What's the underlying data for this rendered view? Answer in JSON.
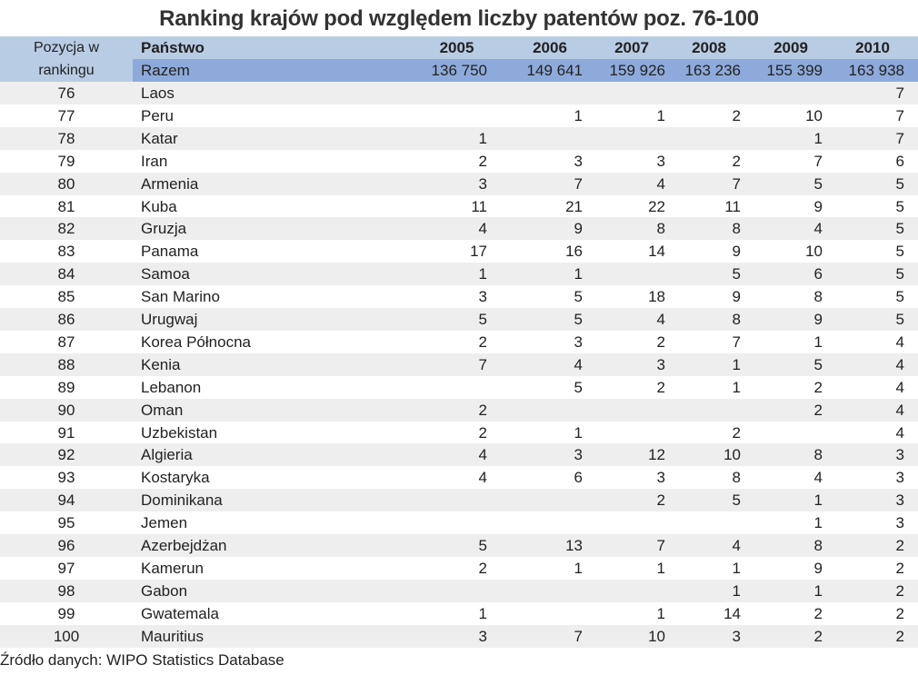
{
  "title": "Ranking krajów pod względem liczby patentów poz. 76-100",
  "header": {
    "position_label": "Pozycja w rankingu",
    "country_label": "Państwo",
    "years": [
      "2005",
      "2006",
      "2007",
      "2008",
      "2009",
      "2010"
    ]
  },
  "total": {
    "label": "Razem",
    "values": [
      "136 750",
      "149 641",
      "159 926",
      "163 236",
      "155 399",
      "163 938"
    ]
  },
  "rows": [
    {
      "pos": "76",
      "country": "Laos",
      "v": [
        "",
        "",
        "",
        "",
        "",
        "7"
      ]
    },
    {
      "pos": "77",
      "country": "Peru",
      "v": [
        "",
        "1",
        "1",
        "2",
        "10",
        "7"
      ]
    },
    {
      "pos": "78",
      "country": "Katar",
      "v": [
        "1",
        "",
        "",
        "",
        "1",
        "7"
      ]
    },
    {
      "pos": "79",
      "country": "Iran",
      "v": [
        "2",
        "3",
        "3",
        "2",
        "7",
        "6"
      ]
    },
    {
      "pos": "80",
      "country": "Armenia",
      "v": [
        "3",
        "7",
        "4",
        "7",
        "5",
        "5"
      ]
    },
    {
      "pos": "81",
      "country": "Kuba",
      "v": [
        "11",
        "21",
        "22",
        "11",
        "9",
        "5"
      ]
    },
    {
      "pos": "82",
      "country": "Gruzja",
      "v": [
        "4",
        "9",
        "8",
        "8",
        "4",
        "5"
      ]
    },
    {
      "pos": "83",
      "country": "Panama",
      "v": [
        "17",
        "16",
        "14",
        "9",
        "10",
        "5"
      ]
    },
    {
      "pos": "84",
      "country": "Samoa",
      "v": [
        "1",
        "1",
        "",
        "5",
        "6",
        "5"
      ]
    },
    {
      "pos": "85",
      "country": "San Marino",
      "v": [
        "3",
        "5",
        "18",
        "9",
        "8",
        "5"
      ]
    },
    {
      "pos": "86",
      "country": "Urugwaj",
      "v": [
        "5",
        "5",
        "4",
        "8",
        "9",
        "5"
      ]
    },
    {
      "pos": "87",
      "country": "Korea Północna",
      "v": [
        "2",
        "3",
        "2",
        "7",
        "1",
        "4"
      ]
    },
    {
      "pos": "88",
      "country": "Kenia",
      "v": [
        "7",
        "4",
        "3",
        "1",
        "5",
        "4"
      ]
    },
    {
      "pos": "89",
      "country": "Lebanon",
      "v": [
        "",
        "5",
        "2",
        "1",
        "2",
        "4"
      ]
    },
    {
      "pos": "90",
      "country": "Oman",
      "v": [
        "2",
        "",
        "",
        "",
        "2",
        "4"
      ]
    },
    {
      "pos": "91",
      "country": "Uzbekistan",
      "v": [
        "2",
        "1",
        "",
        "2",
        "",
        "4"
      ]
    },
    {
      "pos": "92",
      "country": "Algieria",
      "v": [
        "4",
        "3",
        "12",
        "10",
        "8",
        "3"
      ]
    },
    {
      "pos": "93",
      "country": "Kostaryka",
      "v": [
        "4",
        "6",
        "3",
        "8",
        "4",
        "3"
      ]
    },
    {
      "pos": "94",
      "country": "Dominikana",
      "v": [
        "",
        "",
        "2",
        "5",
        "1",
        "3"
      ]
    },
    {
      "pos": "95",
      "country": "Jemen",
      "v": [
        "",
        "",
        "",
        "",
        "1",
        "3"
      ]
    },
    {
      "pos": "96",
      "country": "Azerbejdżan",
      "v": [
        "5",
        "13",
        "7",
        "4",
        "8",
        "2"
      ]
    },
    {
      "pos": "97",
      "country": "Kamerun",
      "v": [
        "2",
        "1",
        "1",
        "1",
        "9",
        "2"
      ]
    },
    {
      "pos": "98",
      "country": "Gabon",
      "v": [
        "",
        "",
        "",
        "1",
        "1",
        "2"
      ]
    },
    {
      "pos": "99",
      "country": "Gwatemala",
      "v": [
        "1",
        "",
        "1",
        "14",
        "2",
        "2"
      ]
    },
    {
      "pos": "100",
      "country": "Mauritius",
      "v": [
        "3",
        "7",
        "10",
        "3",
        "2",
        "2"
      ]
    }
  ],
  "source": "Źródło danych: WIPO Statistics Database",
  "colors": {
    "header": "#b8cce4",
    "total_row": "#8eaadb",
    "alt_row": "#eeeeee"
  },
  "chart_data": {
    "type": "table",
    "title": "Ranking krajów pod względem liczby patentów poz. 76-100",
    "columns": [
      "Pozycja w rankingu",
      "Państwo",
      "2005",
      "2006",
      "2007",
      "2008",
      "2009",
      "2010"
    ],
    "total_row": [
      "",
      "Razem",
      "136 750",
      "149 641",
      "159 926",
      "163 236",
      "155 399",
      "163 938"
    ]
  }
}
